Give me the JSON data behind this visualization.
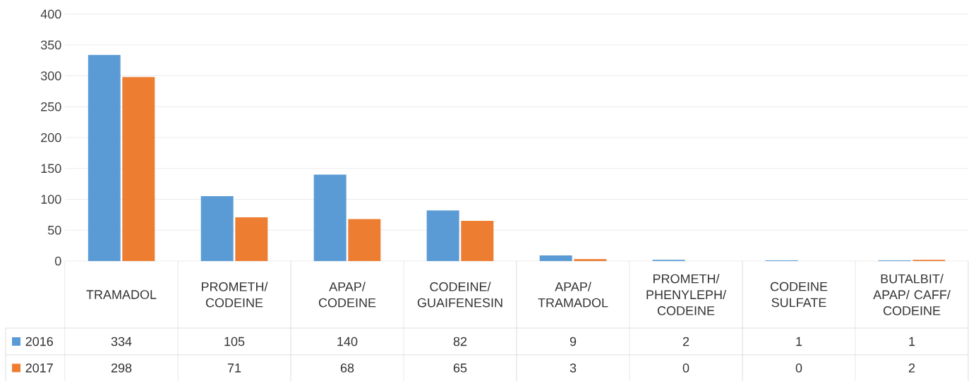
{
  "chart_data": {
    "type": "bar",
    "categories": [
      "TRAMADOL",
      "PROMETH/ CODEINE",
      "APAP/ CODEINE",
      "CODEINE/ GUAIFENESIN",
      "APAP/ TRAMADOL",
      "PROMETH/ PHENYLEPH/ CODEINE",
      "CODEINE SULFATE",
      "BUTALBIT/ APAP/ CAFF/ CODEINE"
    ],
    "series": [
      {
        "name": "2016",
        "color": "#5b9bd5",
        "values": [
          334,
          105,
          140,
          82,
          9,
          2,
          1,
          1
        ]
      },
      {
        "name": "2017",
        "color": "#ed7d31",
        "values": [
          298,
          71,
          68,
          65,
          3,
          0,
          0,
          2
        ]
      }
    ],
    "ylim": [
      0,
      400
    ],
    "yticks": [
      0,
      50,
      100,
      150,
      200,
      250,
      300,
      350,
      400
    ],
    "grid": "y",
    "data_labels": true,
    "legend": "bottom"
  }
}
